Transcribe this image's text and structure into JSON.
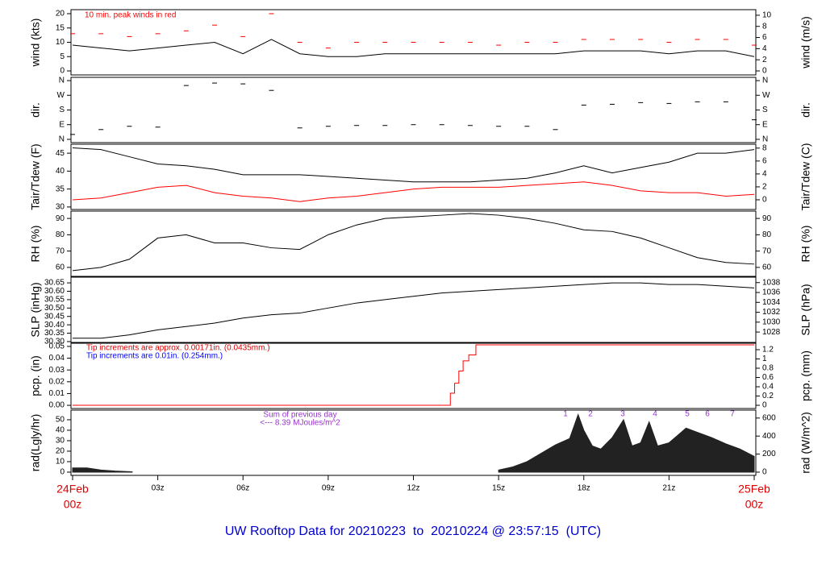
{
  "title": "UW Rooftop Data for 20210223  to  20210224 @ 23:57:15  (UTC)",
  "chart_data": [
    {
      "type": "line",
      "ylabel": "wind (kts)",
      "y2label": "wind (m/s)",
      "annotation": "10 min. peak winds in red",
      "x": [
        0,
        1,
        2,
        3,
        4,
        5,
        6,
        7,
        8,
        9,
        10,
        11,
        12,
        13,
        14,
        15,
        16,
        17,
        18,
        19,
        20,
        21,
        22,
        23,
        24
      ],
      "series": [
        {
          "color": "#000000",
          "values": [
            9,
            8,
            7,
            8,
            9,
            10,
            6,
            11,
            6,
            5,
            5,
            6,
            6,
            6,
            6,
            6,
            6,
            6,
            7,
            7,
            7,
            6,
            7,
            7,
            5
          ]
        },
        {
          "color": "#ff0000",
          "marker": "dash",
          "values": [
            13,
            13,
            12,
            13,
            14,
            16,
            12,
            20,
            10,
            8,
            10,
            10,
            10,
            10,
            10,
            9,
            10,
            10,
            11,
            11,
            11,
            10,
            11,
            11,
            9
          ]
        }
      ],
      "ylim": [
        -1.4,
        21.4
      ],
      "yticks": [
        0,
        5,
        10,
        15,
        20
      ],
      "y2lim": [
        -0.72,
        11.0
      ],
      "y2ticks": [
        0,
        2,
        4,
        6,
        8,
        10
      ]
    },
    {
      "type": "scatter",
      "ylabel": "dir.",
      "y2label": "dir.",
      "x": [
        0,
        1,
        2,
        3,
        4,
        5,
        6,
        7,
        8,
        9,
        10,
        11,
        12,
        13,
        14,
        15,
        16,
        17,
        18,
        19,
        20,
        21,
        22,
        23,
        24
      ],
      "series": [
        {
          "color": "#000000",
          "marker": "dash",
          "values": [
            30,
            60,
            80,
            75,
            330,
            345,
            340,
            300,
            70,
            80,
            85,
            85,
            90,
            90,
            85,
            80,
            80,
            60,
            210,
            215,
            225,
            220,
            230,
            230,
            120
          ]
        }
      ],
      "ylim": [
        -20,
        380
      ],
      "yticks": [
        {
          "value": 0,
          "label": "N"
        },
        {
          "value": 90,
          "label": "E"
        },
        {
          "value": 180,
          "label": "S"
        },
        {
          "value": 270,
          "label": "W"
        },
        {
          "value": 360,
          "label": "N"
        }
      ]
    },
    {
      "type": "line",
      "ylabel": "Tair/Tdew (F)",
      "y2label": "Tair/Tdew (C)",
      "x": [
        0,
        1,
        2,
        3,
        4,
        5,
        6,
        7,
        8,
        9,
        10,
        11,
        12,
        13,
        14,
        15,
        16,
        17,
        18,
        19,
        20,
        21,
        22,
        23,
        24
      ],
      "series": [
        {
          "color": "#000000",
          "values": [
            46.5,
            46,
            44,
            42,
            41.5,
            40.5,
            39,
            39,
            39,
            38.5,
            38,
            37.5,
            37,
            37,
            37,
            37.5,
            38,
            39.5,
            41.5,
            39.5,
            41,
            42.5,
            45,
            45,
            46
          ]
        },
        {
          "color": "#ff0000",
          "values": [
            32,
            32.5,
            34,
            35.5,
            36,
            34,
            33,
            32.5,
            31.5,
            32.5,
            33,
            34,
            35,
            35.5,
            35.5,
            35.5,
            36,
            36.5,
            37,
            36,
            34.5,
            34,
            34,
            33,
            33.5
          ]
        }
      ],
      "ylim": [
        29.3,
        47.5
      ],
      "yticks": [
        30,
        35,
        40,
        45
      ],
      "y2lim": [
        -1.5,
        8.6
      ],
      "y2ticks": [
        0,
        2,
        4,
        6,
        8
      ]
    },
    {
      "type": "line",
      "ylabel": "RH (%)",
      "y2label": "RH (%)",
      "x": [
        0,
        1,
        2,
        3,
        4,
        5,
        6,
        7,
        8,
        9,
        10,
        11,
        12,
        13,
        14,
        15,
        16,
        17,
        18,
        19,
        20,
        21,
        22,
        23,
        24
      ],
      "series": [
        {
          "color": "#000000",
          "values": [
            58,
            60,
            65,
            78,
            80,
            75,
            75,
            72,
            71,
            80,
            86,
            90,
            91,
            92,
            93,
            92,
            90,
            87,
            83,
            82,
            78,
            72,
            66,
            63,
            62
          ]
        }
      ],
      "ylim": [
        54.5,
        94.5
      ],
      "yticks": [
        60,
        70,
        80,
        90
      ]
    },
    {
      "type": "line",
      "ylabel": "SLP (inHg)",
      "y2label": "SLP (hPa)",
      "x": [
        0,
        1,
        2,
        3,
        4,
        5,
        6,
        7,
        8,
        9,
        10,
        11,
        12,
        13,
        14,
        15,
        16,
        17,
        18,
        19,
        20,
        21,
        22,
        23,
        24
      ],
      "series": [
        {
          "color": "#000000",
          "values": [
            30.32,
            30.32,
            30.34,
            30.37,
            30.39,
            30.41,
            30.44,
            30.46,
            30.47,
            30.5,
            30.53,
            30.55,
            30.57,
            30.59,
            30.6,
            30.61,
            30.62,
            30.63,
            30.64,
            30.65,
            30.65,
            30.64,
            30.64,
            30.63,
            30.62
          ]
        }
      ],
      "ylim": [
        30.295,
        30.684
      ],
      "yticks": [
        {
          "value": 30.3,
          "label": "30.30"
        },
        30.35,
        {
          "value": 30.4,
          "label": "30.40"
        },
        30.45,
        {
          "value": 30.5,
          "label": "30.50"
        },
        30.55,
        {
          "value": 30.6,
          "label": "30.60"
        },
        30.65
      ],
      "y2lim": [
        1025.9,
        1039.1
      ],
      "y2ticks": [
        1028,
        1030,
        1032,
        1034,
        1036,
        1038
      ]
    },
    {
      "type": "step",
      "ylabel": "pcp. (in)",
      "y2label": "pcp. (mm)",
      "notes": [
        {
          "text": "Tip increments are approx. 0.00171in. (0.0435mm.)",
          "color": "#dd0000"
        },
        {
          "text": "Tip increments are 0.01in. (0.254mm.)",
          "color": "#0000ff"
        }
      ],
      "x": [
        0,
        13.3,
        13.45,
        13.6,
        13.75,
        13.95,
        14.2,
        24
      ],
      "series": [
        {
          "color": "#ff0000",
          "values": [
            0,
            0.0103,
            0.0188,
            0.0291,
            0.0377,
            0.0428,
            0.0513,
            0.0513
          ]
        }
      ],
      "ylim": [
        -0.0027,
        0.0527
      ],
      "yticks": [
        {
          "value": 0,
          "label": "0.00"
        },
        0.01,
        0.02,
        0.03,
        0.04,
        0.05
      ],
      "y2lim": [
        -0.069,
        1.339
      ],
      "y2ticks": [
        0,
        0.2,
        0.4,
        0.6,
        0.8,
        1,
        1.2
      ]
    },
    {
      "type": "area",
      "ylabel": "rad(Lgly/hr)",
      "y2label": "rad (W/m^2)",
      "notes": [
        {
          "text": "Sum of previous day",
          "color": "#9933cc"
        },
        {
          "text": "<--- 8.39 MJoules/m^2",
          "color": "#9933cc"
        }
      ],
      "markers": [
        "1",
        "2",
        "3",
        "4",
        "5",
        "6",
        "7"
      ],
      "marker_color": "#9933cc",
      "x": [
        0,
        0.5,
        1,
        1.5,
        2,
        2.1,
        8,
        15,
        15.5,
        16,
        16.5,
        17,
        17.5,
        17.8,
        18,
        18.3,
        18.6,
        19,
        19.4,
        19.7,
        20,
        20.3,
        20.6,
        21,
        21.3,
        21.6,
        22,
        22.5,
        23,
        23.5,
        24
      ],
      "series": [
        {
          "color": "#222222",
          "values": [
            4,
            4,
            2,
            1,
            0.5,
            0.3,
            null,
            2,
            5,
            10,
            18,
            26,
            32,
            55,
            40,
            25,
            22,
            33,
            50,
            25,
            28,
            48,
            25,
            28,
            35,
            42,
            38,
            33,
            27,
            22,
            15
          ]
        }
      ],
      "ylim": [
        -3.1,
        59.2
      ],
      "yticks": [
        0,
        10,
        20,
        30,
        40,
        50
      ],
      "y2lim": [
        -36,
        688
      ],
      "y2ticks": [
        0,
        200,
        400,
        600
      ],
      "xlim": [
        0,
        24
      ],
      "xticks": [
        {
          "value": 0,
          "label": "24Feb",
          "sublabel": "00z"
        },
        {
          "value": 3,
          "label": "03z"
        },
        {
          "value": 6,
          "label": "06z"
        },
        {
          "value": 9,
          "label": "09z"
        },
        {
          "value": 12,
          "label": "12z"
        },
        {
          "value": 15,
          "label": "15z"
        },
        {
          "value": 18,
          "label": "18z"
        },
        {
          "value": 21,
          "label": "21z"
        },
        {
          "value": 24,
          "label": "25Feb",
          "sublabel": "00z"
        }
      ]
    }
  ]
}
